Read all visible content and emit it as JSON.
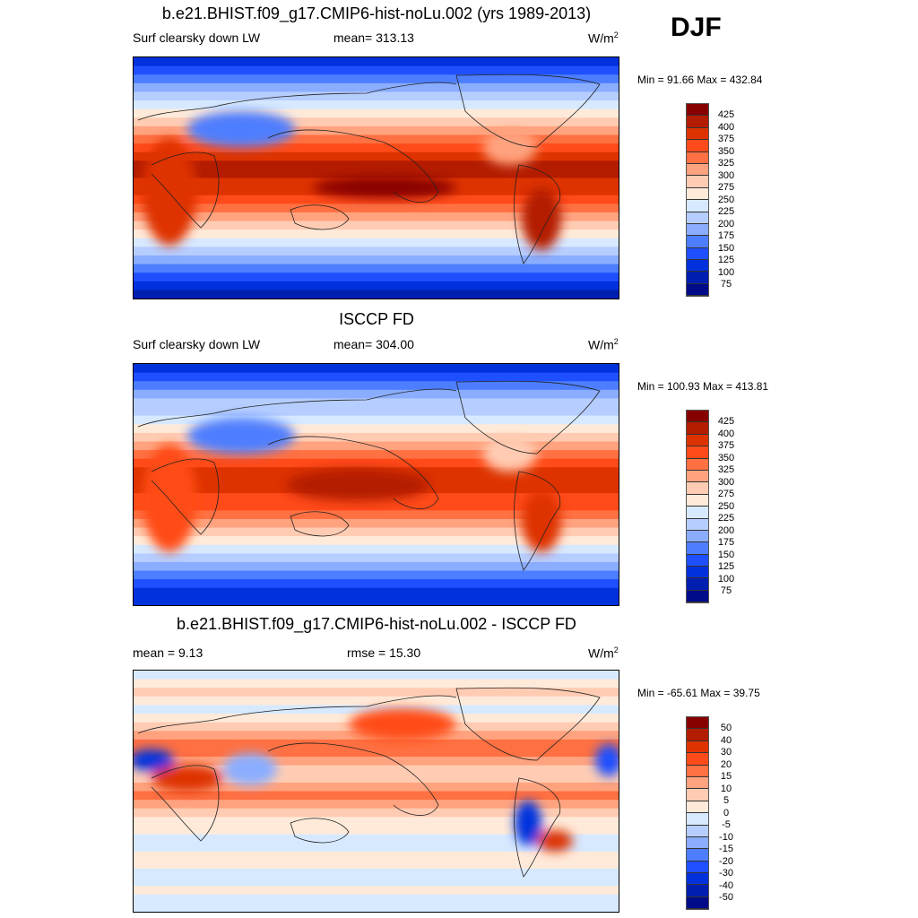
{
  "season": "DJF",
  "panels": [
    {
      "title": "b.e21.BHIST.f09_g17.CMIP6-hist-noLu.002 (yrs 1989-2013)",
      "left": "Surf clearsky down LW",
      "center": "mean= 313.13",
      "units": "W/m",
      "units_sup": "2",
      "minmax": "Min =  91.66 Max = 432.84",
      "levels": [
        "425",
        "400",
        "375",
        "350",
        "325",
        "300",
        "275",
        "250",
        "225",
        "200",
        "175",
        "150",
        "125",
        "100",
        "75"
      ]
    },
    {
      "title": "ISCCP FD",
      "left": "Surf clearsky down LW",
      "center": "mean= 304.00",
      "units": "W/m",
      "units_sup": "2",
      "minmax": "Min = 100.93 Max = 413.81",
      "levels": [
        "425",
        "400",
        "375",
        "350",
        "325",
        "300",
        "275",
        "250",
        "225",
        "200",
        "175",
        "150",
        "125",
        "100",
        "75"
      ]
    },
    {
      "title": "b.e21.BHIST.f09_g17.CMIP6-hist-noLu.002 - ISCCP FD",
      "left": "mean =   9.13",
      "center": "rmse =  15.30",
      "units": "W/m",
      "units_sup": "2",
      "minmax": "Min = -65.61 Max =  39.75",
      "levels": [
        "50",
        "40",
        "30",
        "20",
        "15",
        "10",
        "5",
        "0",
        "-5",
        "-10",
        "-15",
        "-20",
        "-30",
        "-40",
        "-50"
      ]
    }
  ],
  "colormap": [
    "#870000",
    "#b41c00",
    "#de3300",
    "#ff4b19",
    "#ff7042",
    "#ffa37f",
    "#ffccb3",
    "#ffead9",
    "#d7e9ff",
    "#b6ceff",
    "#8aadff",
    "#4d7eff",
    "#1f50ff",
    "#0031dd",
    "#001fb0",
    "#000b8a"
  ]
}
